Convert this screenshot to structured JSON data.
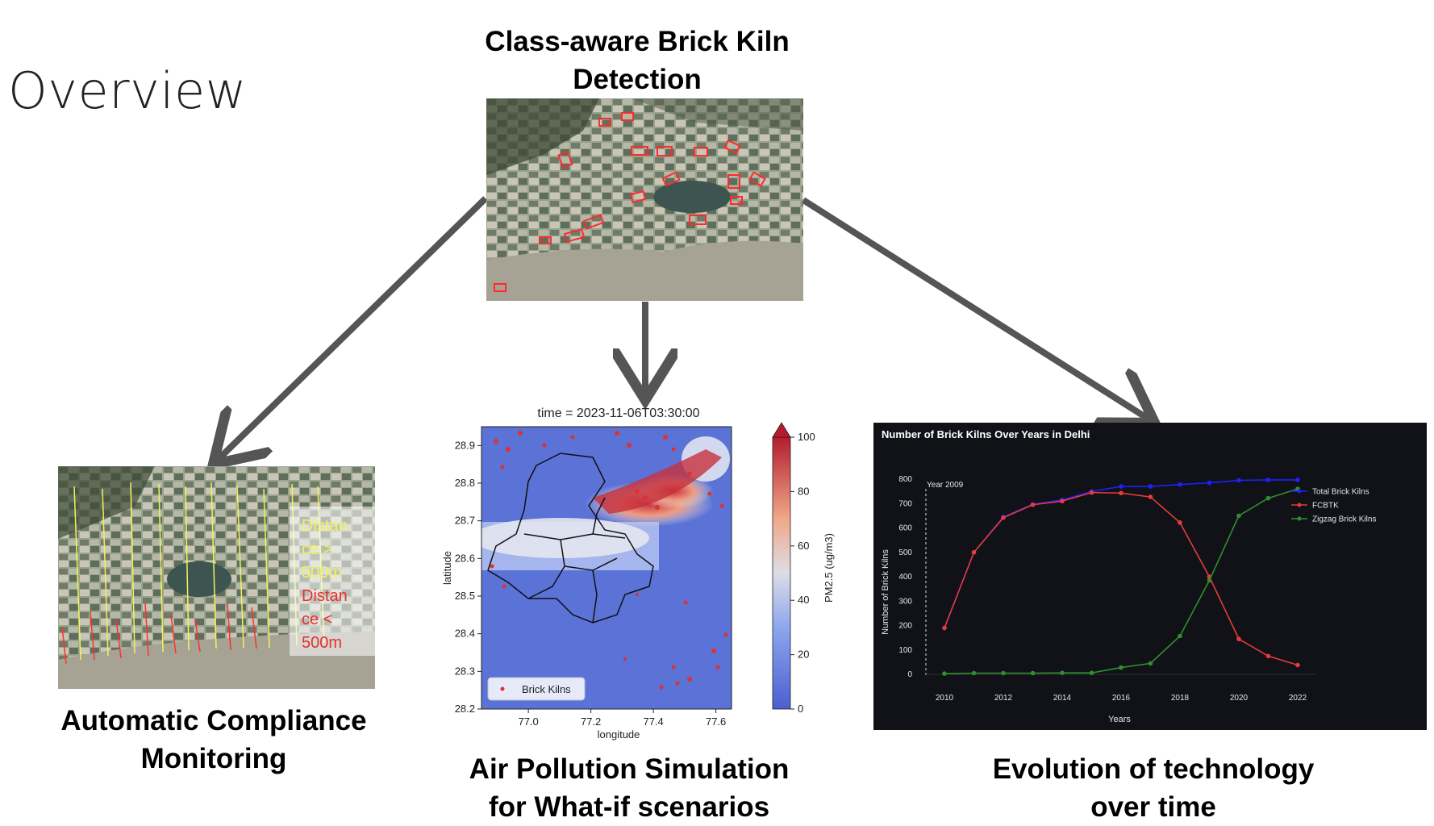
{
  "page": {
    "title": "Overview",
    "captions": {
      "detection_line1": "Class-aware Brick Kiln",
      "detection_line2": "Detection",
      "compliance_line1": "Automatic Compliance",
      "compliance_line2": "Monitoring",
      "pollution_line1": "Air Pollution Simulation",
      "pollution_line2": "for What-if scenarios",
      "evolution_line1": "Evolution of technology",
      "evolution_line2": "over time"
    },
    "compliance_legend": {
      "far_text_l1": "Distan",
      "far_text_l2": "ce >",
      "far_text_l3": "500m",
      "near_text_l1": "Distan",
      "near_text_l2": "ce <",
      "near_text_l3": "500m",
      "far_color": "#f2f25a",
      "near_color": "#e53030"
    }
  },
  "chart_data": [
    {
      "type": "heatmap",
      "title": "time = 2023-11-06T03:30:00",
      "xlabel": "longitude",
      "ylabel": "latitude",
      "xlim": [
        76.85,
        77.65
      ],
      "ylim": [
        28.2,
        28.95
      ],
      "xticks": [
        "77.0",
        "77.2",
        "77.4",
        "77.6"
      ],
      "yticks": [
        "28.2",
        "28.3",
        "28.4",
        "28.5",
        "28.6",
        "28.7",
        "28.8",
        "28.9"
      ],
      "colorbar_label": "PM2.5 (ug/m3)",
      "colorbar_range": [
        0,
        100
      ],
      "colorbar_ticks": [
        "0",
        "20",
        "40",
        "60",
        "80",
        "100"
      ],
      "legend": [
        "Brick Kilns"
      ],
      "legend_position": "lower-left"
    },
    {
      "type": "line",
      "title": "Number of Brick Kilns Over Years in Delhi",
      "annotation": "Year 2009",
      "xlabel": "Years",
      "ylabel": "Number of Brick Kilns",
      "x": [
        2010,
        2011,
        2012,
        2013,
        2014,
        2015,
        2016,
        2017,
        2018,
        2019,
        2020,
        2021,
        2022
      ],
      "xticks": [
        "2010",
        "2012",
        "2014",
        "2016",
        "2018",
        "2020",
        "2022"
      ],
      "yticks": [
        "0",
        "100",
        "200",
        "300",
        "400",
        "500",
        "600",
        "700",
        "800"
      ],
      "ylim": [
        0,
        800
      ],
      "legend_position": "right",
      "series": [
        {
          "name": "Total Brick Kilns",
          "color": "#1f1fff",
          "values": [
            190,
            500,
            645,
            697,
            715,
            750,
            770,
            770,
            778,
            785,
            795,
            797,
            797
          ]
        },
        {
          "name": "FCBTK",
          "color": "#e83a3a",
          "values": [
            190,
            500,
            642,
            695,
            710,
            745,
            743,
            727,
            622,
            400,
            145,
            75,
            38
          ]
        },
        {
          "name": "Zigzag Brick Kilns",
          "color": "#2f8f2f",
          "values": [
            3,
            5,
            5,
            5,
            6,
            6,
            28,
            45,
            157,
            385,
            650,
            722,
            760
          ]
        }
      ]
    }
  ]
}
